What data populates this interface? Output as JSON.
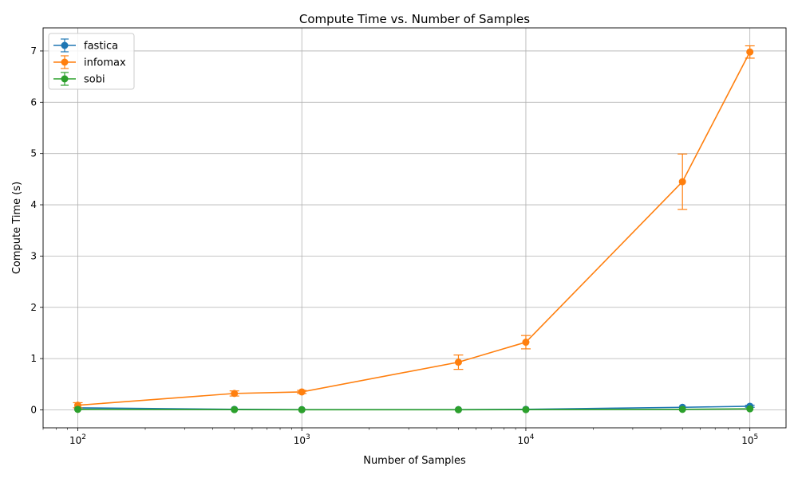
{
  "chart_data": {
    "type": "line",
    "title": "Compute Time vs. Number of Samples",
    "xlabel": "Number of Samples",
    "ylabel": "Compute Time (s)",
    "xscale": "log",
    "xlim": [
      70,
      145000
    ],
    "ylim": [
      -0.35,
      7.45
    ],
    "x_ticks": [
      100,
      1000,
      10000,
      100000
    ],
    "x_tick_labels": [
      {
        "base": "10",
        "exp": "2"
      },
      {
        "base": "10",
        "exp": "3"
      },
      {
        "base": "10",
        "exp": "4"
      },
      {
        "base": "10",
        "exp": "5"
      }
    ],
    "y_ticks": [
      0,
      1,
      2,
      3,
      4,
      5,
      6,
      7
    ],
    "y_tick_labels": [
      "0",
      "1",
      "2",
      "3",
      "4",
      "5",
      "6",
      "7"
    ],
    "grid": true,
    "legend_position": "top-left",
    "x": [
      100,
      500,
      1000,
      5000,
      10000,
      50000,
      100000
    ],
    "series": [
      {
        "name": "fastica",
        "color": "#1f77b4",
        "values": [
          0.04,
          0.01,
          0.005,
          0.005,
          0.01,
          0.05,
          0.07
        ],
        "errors": [
          0.01,
          0.005,
          0.002,
          0.002,
          0.003,
          0.01,
          0.02
        ]
      },
      {
        "name": "infomax",
        "color": "#ff7f0e",
        "values": [
          0.09,
          0.32,
          0.35,
          0.93,
          1.32,
          4.45,
          6.98
        ],
        "errors": [
          0.05,
          0.05,
          0.03,
          0.14,
          0.13,
          0.54,
          0.12
        ]
      },
      {
        "name": "sobi",
        "color": "#2ca02c",
        "values": [
          0.01,
          0.005,
          0.003,
          0.003,
          0.005,
          0.01,
          0.02
        ],
        "errors": [
          0.005,
          0.002,
          0.001,
          0.001,
          0.002,
          0.005,
          0.005
        ]
      }
    ]
  }
}
